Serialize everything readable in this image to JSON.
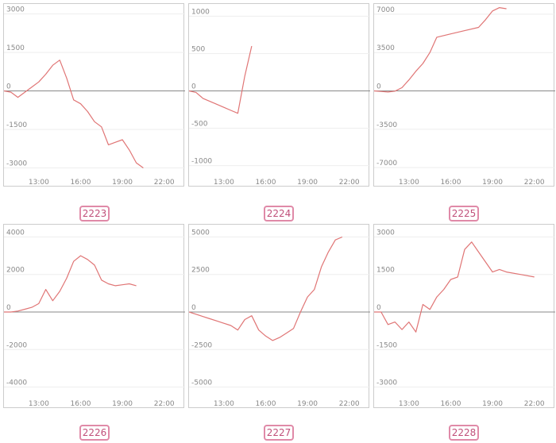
{
  "colors": {
    "line": "#e07575",
    "grid": "#eeeeee",
    "zero": "#888888",
    "frame": "#cccccc",
    "badge": "#c0507a"
  },
  "chart_data": [
    {
      "type": "line",
      "label": "2223",
      "xlim": [
        10.5,
        23.5
      ],
      "ylim": [
        -3200,
        3200
      ],
      "yticks": [
        3000,
        1500,
        0,
        -1500,
        -3000
      ],
      "ytick_labels": [
        "3000",
        "1500",
        "0",
        "-1500",
        "-3000"
      ],
      "xticks": [
        13,
        16,
        19,
        22
      ],
      "xtick_labels": [
        "13:00",
        "16:00",
        "19:00",
        "22:00"
      ],
      "x": [
        10.5,
        11.0,
        11.5,
        12.0,
        12.5,
        13.0,
        13.5,
        14.0,
        14.5,
        15.0,
        15.5,
        16.0,
        16.5,
        17.0,
        17.5,
        18.0,
        18.5,
        19.0,
        19.5,
        20.0,
        20.5
      ],
      "values": [
        0,
        -50,
        -250,
        -50,
        150,
        350,
        650,
        1000,
        1200,
        500,
        -350,
        -500,
        -800,
        -1200,
        -1400,
        -2100,
        -2000,
        -1900,
        -2300,
        -2800,
        -3000
      ]
    },
    {
      "type": "line",
      "label": "2224",
      "xlim": [
        10.5,
        23.5
      ],
      "ylim": [
        -1100,
        1100
      ],
      "yticks": [
        1000,
        500,
        0,
        -500,
        -1000
      ],
      "ytick_labels": [
        "1000",
        "500",
        "0",
        "-500",
        "-1000"
      ],
      "xticks": [
        13,
        16,
        19,
        22
      ],
      "xtick_labels": [
        "13:00",
        "16:00",
        "19:00",
        "22:00"
      ],
      "x": [
        10.5,
        11.0,
        11.5,
        12.0,
        12.5,
        13.0,
        13.5,
        14.0,
        14.5,
        15.0
      ],
      "values": [
        0,
        -20,
        -100,
        -140,
        -180,
        -220,
        -260,
        -300,
        200,
        600
      ]
    },
    {
      "type": "line",
      "label": "2225",
      "xlim": [
        10.5,
        23.5
      ],
      "ylim": [
        -7500,
        7500
      ],
      "yticks": [
        7000,
        3500,
        0,
        -3500,
        -7000
      ],
      "ytick_labels": [
        "7000",
        "3500",
        "0",
        "-3500",
        "-7000"
      ],
      "xticks": [
        13,
        16,
        19,
        22
      ],
      "xtick_labels": [
        "13:00",
        "16:00",
        "19:00",
        "22:00"
      ],
      "x": [
        10.5,
        11.0,
        11.5,
        12.0,
        12.5,
        13.0,
        13.5,
        14.0,
        14.5,
        15.0,
        16.0,
        17.0,
        18.0,
        18.5,
        19.0,
        19.5,
        20.0
      ],
      "values": [
        0,
        -50,
        -100,
        -20,
        300,
        1000,
        1800,
        2500,
        3500,
        4900,
        5200,
        5500,
        5800,
        6500,
        7300,
        7600,
        7500
      ]
    },
    {
      "type": "line",
      "label": "2226",
      "xlim": [
        10.5,
        23.5
      ],
      "ylim": [
        -4400,
        4400
      ],
      "yticks": [
        4000,
        2000,
        0,
        -2000,
        -4000
      ],
      "ytick_labels": [
        "4000",
        "2000",
        "0",
        "-2000",
        "-4000"
      ],
      "xticks": [
        13,
        16,
        19,
        22
      ],
      "xtick_labels": [
        "13:00",
        "16:00",
        "19:00",
        "22:00"
      ],
      "x": [
        10.5,
        11.0,
        11.5,
        12.0,
        12.5,
        13.0,
        13.5,
        14.0,
        14.5,
        15.0,
        15.5,
        16.0,
        16.5,
        17.0,
        17.5,
        18.0,
        18.5,
        19.0,
        19.5,
        20.0
      ],
      "values": [
        0,
        0,
        50,
        150,
        250,
        450,
        1200,
        600,
        1100,
        1800,
        2700,
        3000,
        2800,
        2500,
        1700,
        1500,
        1400,
        1450,
        1500,
        1400
      ]
    },
    {
      "type": "line",
      "label": "2227",
      "xlim": [
        10.5,
        23.5
      ],
      "ylim": [
        -5500,
        5500
      ],
      "yticks": [
        5000,
        2500,
        0,
        -2500,
        -5000
      ],
      "ytick_labels": [
        "5000",
        "2500",
        "0",
        "-2500",
        "-5000"
      ],
      "xticks": [
        13,
        16,
        19,
        22
      ],
      "xtick_labels": [
        "13:00",
        "16:00",
        "19:00",
        "22:00"
      ],
      "x": [
        10.5,
        11.0,
        11.5,
        12.0,
        12.5,
        13.0,
        13.5,
        14.0,
        14.5,
        15.0,
        15.5,
        16.0,
        16.5,
        17.0,
        17.5,
        18.0,
        18.5,
        19.0,
        19.5,
        20.0,
        20.5,
        21.0,
        21.5
      ],
      "values": [
        0,
        -150,
        -300,
        -450,
        -600,
        -750,
        -900,
        -1200,
        -500,
        -250,
        -1200,
        -1600,
        -1900,
        -1700,
        -1400,
        -1100,
        0,
        1000,
        1500,
        3000,
        4000,
        4800,
        5000
      ]
    },
    {
      "type": "line",
      "label": "2228",
      "xlim": [
        10.5,
        23.5
      ],
      "ylim": [
        -3300,
        3300
      ],
      "yticks": [
        3000,
        1500,
        0,
        -1500,
        -3000
      ],
      "ytick_labels": [
        "3000",
        "1500",
        "0",
        "-1500",
        "-3000"
      ],
      "xticks": [
        13,
        16,
        19,
        22
      ],
      "xtick_labels": [
        "13:00",
        "16:00",
        "19:00",
        "22:00"
      ],
      "x": [
        10.5,
        11.0,
        11.5,
        12.0,
        12.5,
        13.0,
        13.5,
        14.0,
        14.5,
        15.0,
        15.5,
        16.0,
        16.5,
        17.0,
        17.5,
        18.0,
        18.5,
        19.0,
        19.5,
        20.0,
        21.0,
        22.0
      ],
      "values": [
        0,
        0,
        -500,
        -400,
        -700,
        -400,
        -800,
        300,
        100,
        600,
        900,
        1300,
        1400,
        2500,
        2800,
        2400,
        2000,
        1600,
        1700,
        1600,
        1500,
        1400
      ]
    }
  ]
}
